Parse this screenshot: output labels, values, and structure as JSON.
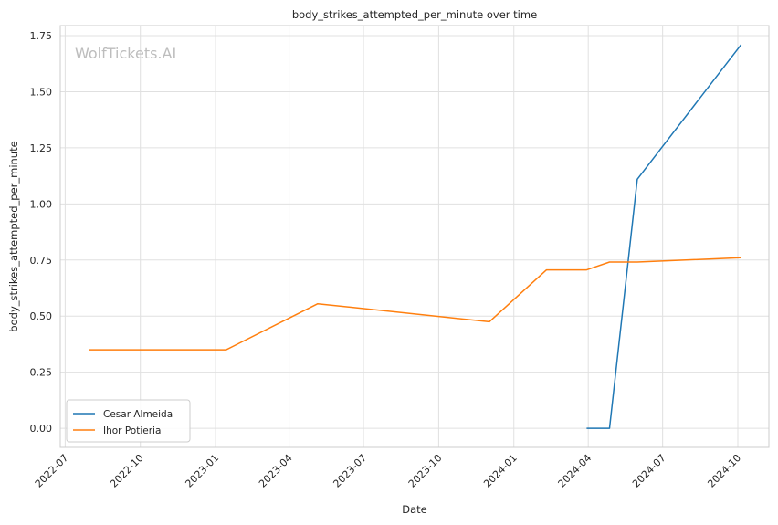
{
  "chart_data": {
    "type": "line",
    "title": "body_strikes_attempted_per_minute over time",
    "xlabel": "Date",
    "ylabel": "body_strikes_attempted_per_minute",
    "watermark": "WolfTickets.AI",
    "grid": true,
    "legend_position": "bottom-left",
    "xlim": [
      "2022-06-25",
      "2024-11-08"
    ],
    "ylim": [
      -0.085,
      1.795
    ],
    "x_ticks": [
      "2022-07",
      "2022-10",
      "2023-01",
      "2023-04",
      "2023-07",
      "2023-10",
      "2024-01",
      "2024-04",
      "2024-07",
      "2024-10"
    ],
    "y_ticks": [
      "0.00",
      "0.25",
      "0.50",
      "0.75",
      "1.00",
      "1.25",
      "1.50",
      "1.75"
    ],
    "series": [
      {
        "name": "Cesar Almeida",
        "color": "#1f77b4",
        "points": [
          {
            "x": "2024-03-30",
            "y": 0.0
          },
          {
            "x": "2024-04-27",
            "y": 0.0
          },
          {
            "x": "2024-05-31",
            "y": 1.11
          },
          {
            "x": "2024-10-05",
            "y": 1.71
          }
        ]
      },
      {
        "name": "Ihor Potieria",
        "color": "#ff7f0e",
        "points": [
          {
            "x": "2022-07-30",
            "y": 0.35
          },
          {
            "x": "2023-01-14",
            "y": 0.35
          },
          {
            "x": "2023-05-06",
            "y": 0.555
          },
          {
            "x": "2023-12-02",
            "y": 0.475
          },
          {
            "x": "2024-02-10",
            "y": 0.706
          },
          {
            "x": "2024-03-30",
            "y": 0.706
          },
          {
            "x": "2024-04-27",
            "y": 0.741
          },
          {
            "x": "2024-05-31",
            "y": 0.741
          },
          {
            "x": "2024-10-05",
            "y": 0.76
          }
        ]
      }
    ]
  }
}
